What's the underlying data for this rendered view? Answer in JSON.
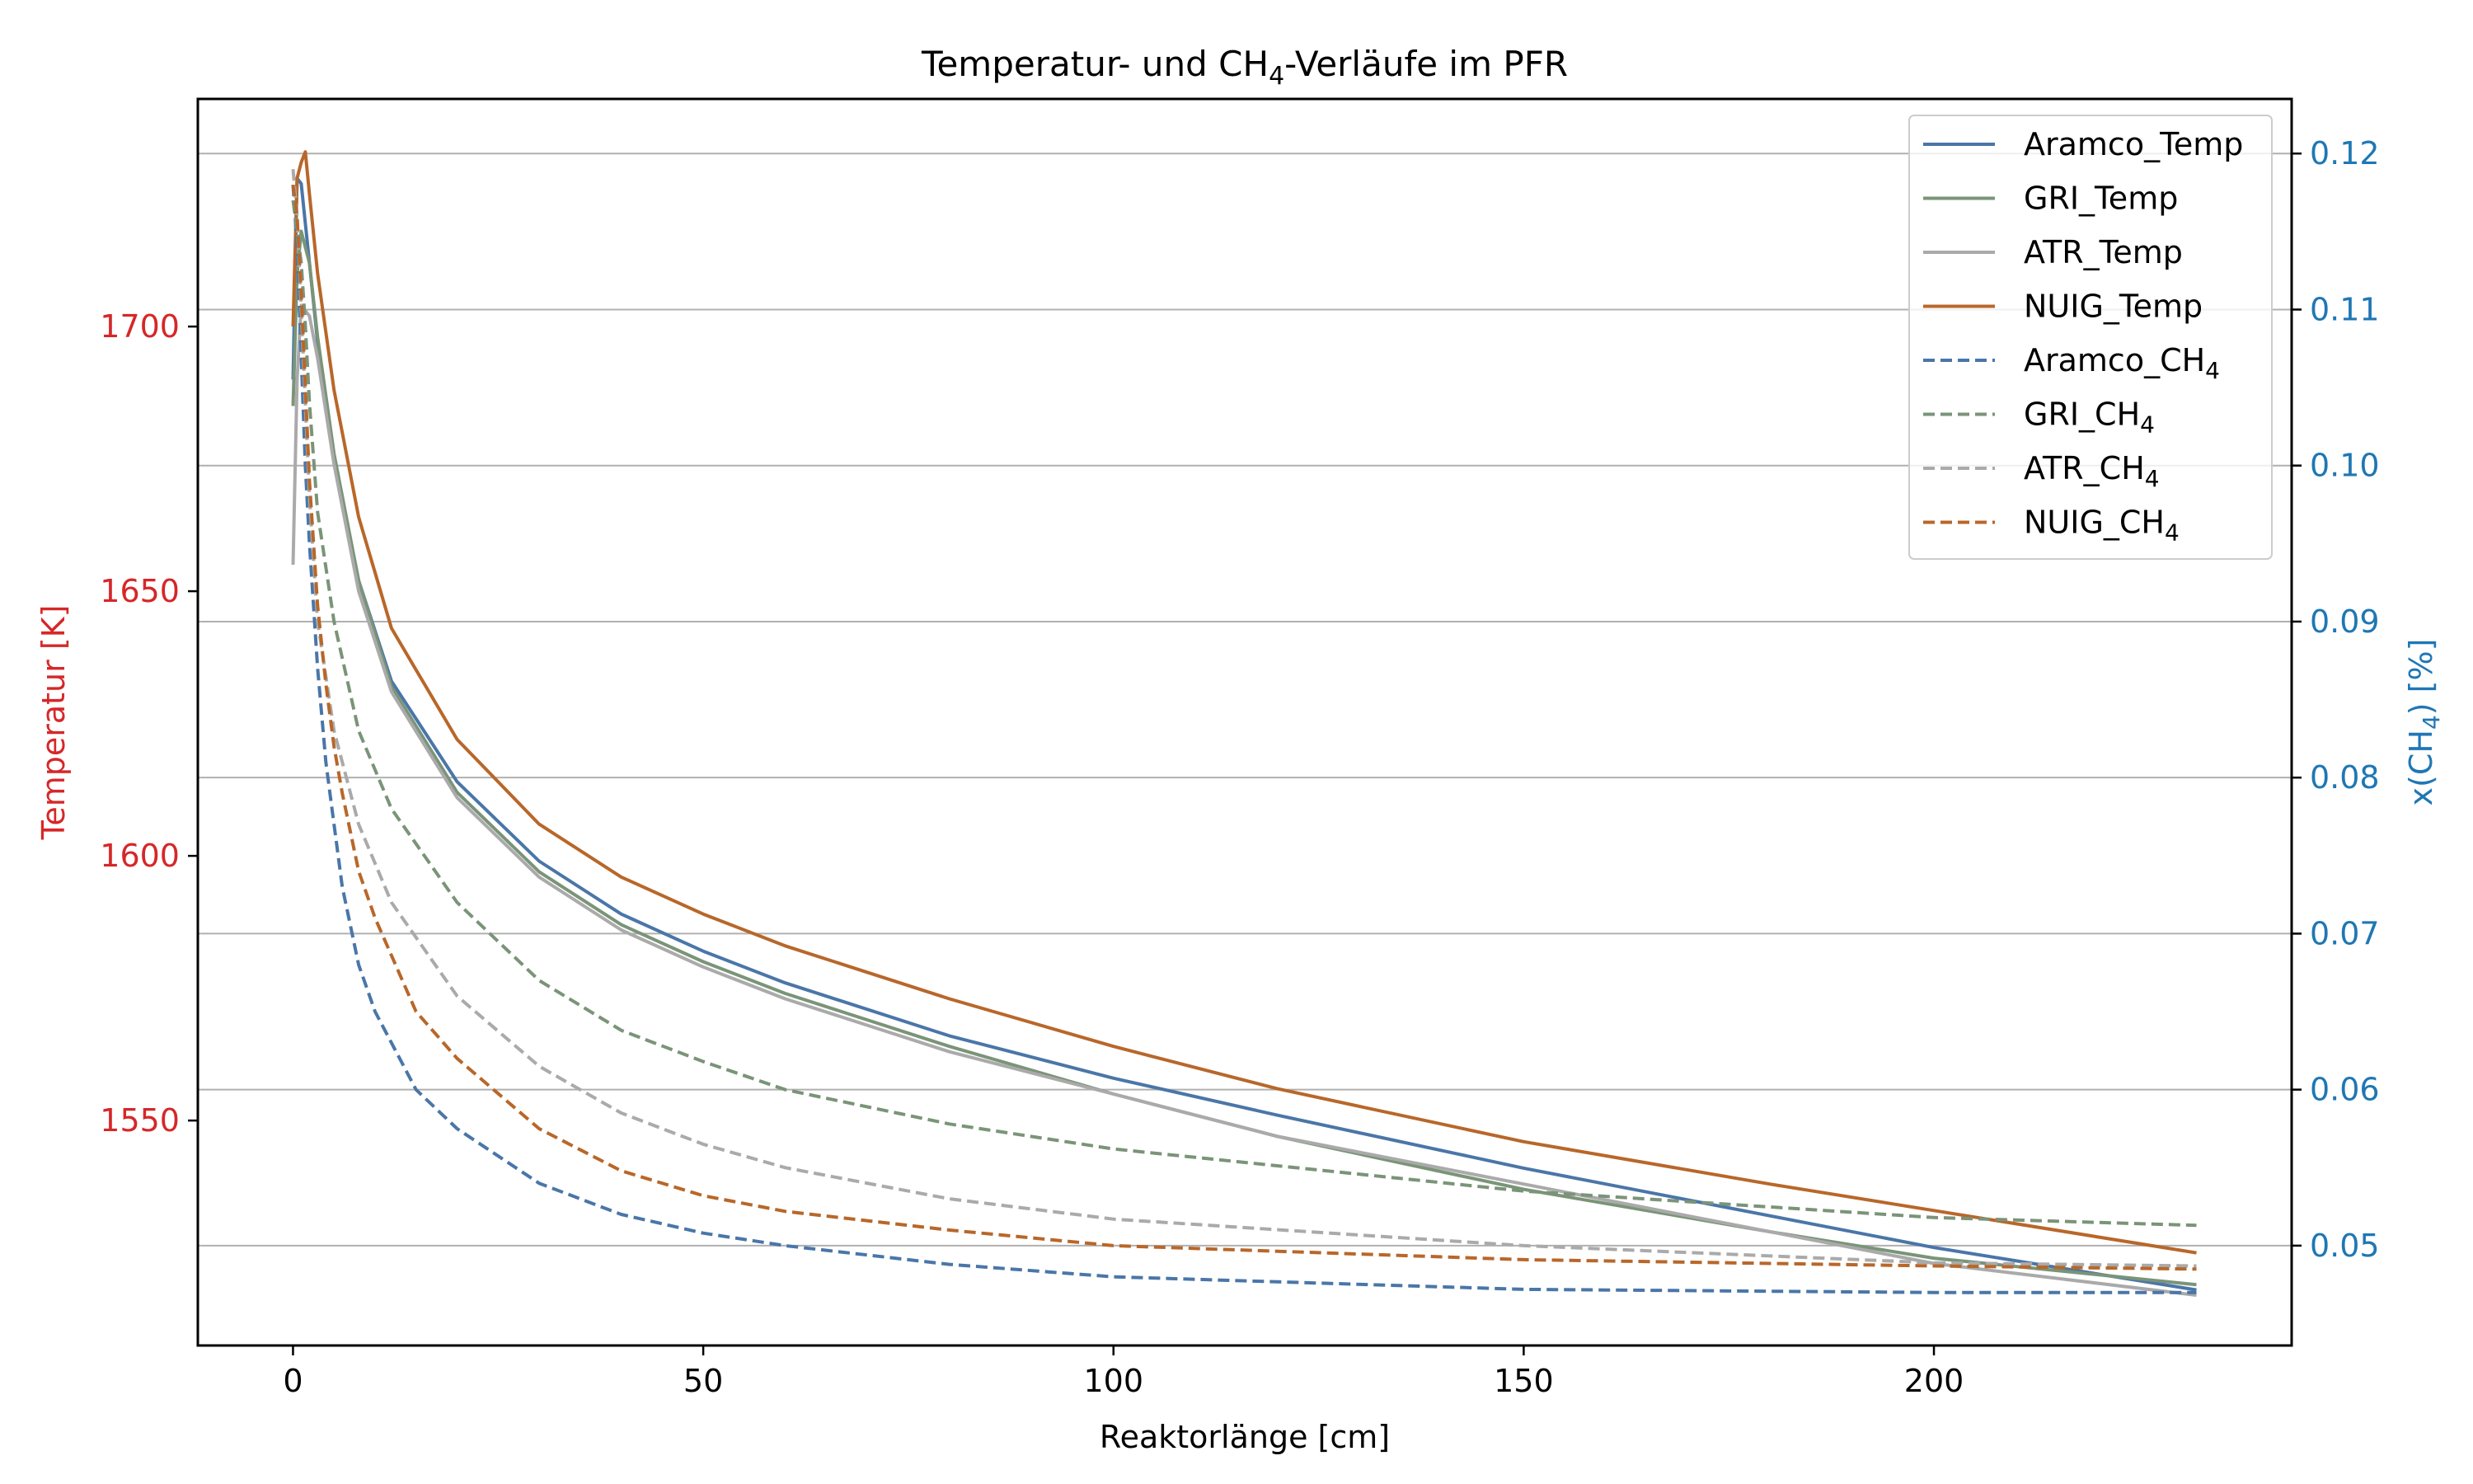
{
  "chart_data": {
    "type": "line",
    "title_parts": [
      "Temperatur- und CH",
      "4",
      "-Verläufe im PFR"
    ],
    "xlabel": "Reaktorlänge [cm]",
    "ylabel_left": "Temperatur [K]",
    "ylabel_right_parts": [
      "x(CH",
      "4",
      ") [%]"
    ],
    "xlim": [
      -11.6,
      243.6
    ],
    "ylim_left": [
      1507.5,
      1743
    ],
    "ylim_right": [
      0.0436,
      0.1235
    ],
    "xticks": [
      0,
      50,
      100,
      150,
      200
    ],
    "xtick_labels": [
      "0",
      "50",
      "100",
      "150",
      "200"
    ],
    "yticks_left": [
      1550,
      1600,
      1650,
      1700
    ],
    "ytick_labels_left": [
      "1550",
      "1600",
      "1650",
      "1700"
    ],
    "yticks_right": [
      0.05,
      0.06,
      0.07,
      0.08,
      0.09,
      0.1,
      0.11,
      0.12
    ],
    "ytick_labels_right": [
      "0.05",
      "0.06",
      "0.07",
      "0.08",
      "0.09",
      "0.10",
      "0.11",
      "0.12"
    ],
    "grid": "horizontal gridlines at right-axis ticks",
    "legend_position": "top-right",
    "colors": {
      "left_axis": "#d62728",
      "right_axis": "#1f77b4",
      "aramco": "#4a76a8",
      "gri": "#7a9478",
      "atr": "#aaaaaa",
      "nuig": "#b8672a"
    },
    "series": [
      {
        "name": "Aramco_Temp",
        "axis": "left",
        "style": "solid",
        "color": "#4a76a8",
        "x": [
          0,
          0.5,
          1,
          2,
          3,
          5,
          8,
          12,
          20,
          30,
          40,
          50,
          60,
          80,
          100,
          120,
          150,
          180,
          200,
          232
        ],
        "y": [
          1690,
          1728,
          1727,
          1712,
          1697,
          1675,
          1652,
          1633,
          1614,
          1599,
          1589,
          1582,
          1576,
          1566,
          1558,
          1551,
          1541,
          1532,
          1526,
          1518
        ]
      },
      {
        "name": "GRI_Temp",
        "axis": "left",
        "style": "solid",
        "color": "#7a9478",
        "x": [
          0,
          0.5,
          1,
          2,
          3,
          5,
          8,
          12,
          20,
          30,
          40,
          50,
          60,
          80,
          100,
          120,
          150,
          180,
          200,
          232
        ],
        "y": [
          1685,
          1710,
          1718,
          1712,
          1698,
          1676,
          1652,
          1632,
          1612,
          1597,
          1587,
          1580,
          1574,
          1564,
          1555,
          1547,
          1537,
          1529,
          1524,
          1519
        ]
      },
      {
        "name": "ATR_Temp",
        "axis": "left",
        "style": "solid",
        "color": "#aaaaaa",
        "x": [
          0,
          0.5,
          1,
          2,
          3,
          5,
          8,
          12,
          20,
          30,
          40,
          50,
          60,
          80,
          100,
          120,
          150,
          180,
          200,
          232
        ],
        "y": [
          1655,
          1690,
          1704,
          1702,
          1694,
          1674,
          1650,
          1631,
          1611,
          1596,
          1586,
          1579,
          1573,
          1563,
          1555,
          1547,
          1538,
          1529,
          1523,
          1517
        ]
      },
      {
        "name": "NUIG_Temp",
        "axis": "left",
        "style": "solid",
        "color": "#b8672a",
        "x": [
          0,
          0.5,
          1,
          1.5,
          2,
          3,
          5,
          8,
          12,
          20,
          30,
          40,
          50,
          60,
          80,
          100,
          120,
          150,
          180,
          200,
          232
        ],
        "y": [
          1700,
          1728,
          1731,
          1733,
          1725,
          1710,
          1688,
          1664,
          1643,
          1622,
          1606,
          1596,
          1589,
          1583,
          1573,
          1564,
          1556,
          1546,
          1538,
          1533,
          1525
        ]
      },
      {
        "name": "Aramco_CH₄",
        "axis": "right",
        "style": "dashed",
        "color": "#4a76a8",
        "x": [
          0,
          0.5,
          1,
          1.5,
          2,
          3,
          4,
          5,
          6,
          8,
          10,
          15,
          20,
          30,
          40,
          50,
          60,
          80,
          100,
          150,
          200,
          232
        ],
        "y": [
          0.118,
          0.114,
          0.107,
          0.1,
          0.095,
          0.087,
          0.081,
          0.077,
          0.073,
          0.068,
          0.065,
          0.06,
          0.0575,
          0.054,
          0.052,
          0.0508,
          0.05,
          0.0488,
          0.048,
          0.0472,
          0.047,
          0.047
        ]
      },
      {
        "name": "GRI_CH₄",
        "axis": "right",
        "style": "dashed",
        "color": "#7a9478",
        "x": [
          0,
          0.5,
          1,
          1.5,
          2,
          3,
          5,
          8,
          12,
          20,
          30,
          40,
          50,
          60,
          80,
          100,
          150,
          200,
          232
        ],
        "y": [
          0.117,
          0.115,
          0.113,
          0.109,
          0.104,
          0.097,
          0.09,
          0.083,
          0.078,
          0.072,
          0.067,
          0.0638,
          0.0618,
          0.06,
          0.0578,
          0.0562,
          0.0535,
          0.0518,
          0.0513
        ]
      },
      {
        "name": "ATR_CH₄",
        "axis": "right",
        "style": "dashed",
        "color": "#aaaaaa",
        "x": [
          0,
          0.5,
          1,
          1.5,
          2,
          3,
          5,
          8,
          12,
          20,
          30,
          40,
          50,
          60,
          80,
          100,
          150,
          200,
          232
        ],
        "y": [
          0.119,
          0.116,
          0.11,
          0.104,
          0.098,
          0.09,
          0.083,
          0.077,
          0.072,
          0.066,
          0.0615,
          0.0585,
          0.0565,
          0.055,
          0.053,
          0.0517,
          0.05,
          0.0489,
          0.0487
        ]
      },
      {
        "name": "NUIG_CH₄",
        "axis": "right",
        "style": "dashed",
        "color": "#b8672a",
        "x": [
          0,
          0.5,
          1,
          1.5,
          2,
          3,
          4,
          5,
          6,
          8,
          10,
          15,
          20,
          30,
          40,
          50,
          60,
          80,
          100,
          150,
          200,
          232
        ],
        "y": [
          0.118,
          0.116,
          0.111,
          0.105,
          0.099,
          0.091,
          0.086,
          0.082,
          0.079,
          0.074,
          0.071,
          0.065,
          0.062,
          0.0575,
          0.0548,
          0.0532,
          0.0522,
          0.051,
          0.05,
          0.0491,
          0.0487,
          0.0485
        ]
      }
    ],
    "legend_items": [
      {
        "base": "Aramco_Temp",
        "sub": "",
        "color": "#4a76a8",
        "style": "solid"
      },
      {
        "base": "GRI_Temp",
        "sub": "",
        "color": "#7a9478",
        "style": "solid"
      },
      {
        "base": "ATR_Temp",
        "sub": "",
        "color": "#aaaaaa",
        "style": "solid"
      },
      {
        "base": "NUIG_Temp",
        "sub": "",
        "color": "#b8672a",
        "style": "solid"
      },
      {
        "base": "Aramco_CH",
        "sub": "4",
        "color": "#4a76a8",
        "style": "dashed"
      },
      {
        "base": "GRI_CH",
        "sub": "4",
        "color": "#7a9478",
        "style": "dashed"
      },
      {
        "base": "ATR_CH",
        "sub": "4",
        "color": "#aaaaaa",
        "style": "dashed"
      },
      {
        "base": "NUIG_CH",
        "sub": "4",
        "color": "#b8672a",
        "style": "dashed"
      }
    ]
  }
}
